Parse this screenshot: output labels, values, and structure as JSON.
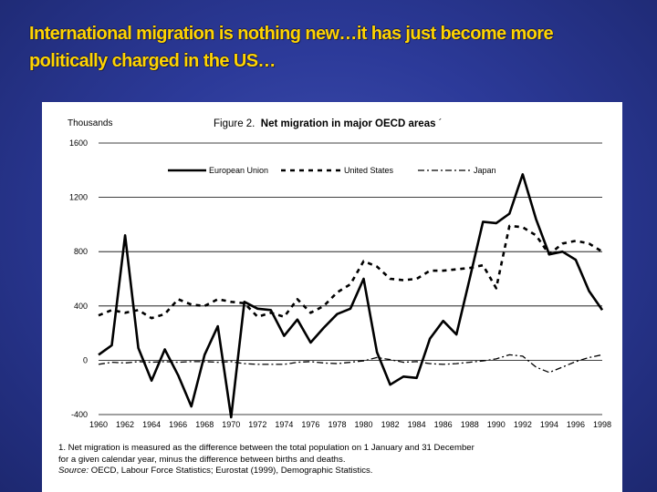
{
  "slide": {
    "title": "International migration is nothing new…it has just become more politically charged in the US…"
  },
  "figure": {
    "title_prefix": "Figure 2.",
    "title_main": "Net migration in major OECD areas",
    "title_mark": "´",
    "unit_label": "Thousands",
    "footnote_line1": "1.  Net migration is measured as the difference between the total population on 1 January and 31 December",
    "footnote_line2": "for a given calendar year, minus the difference between births and deaths.",
    "source_label": "Source:",
    "source_text": "OECD, Labour Force Statistics; Eurostat (1999), Demographic Statistics."
  },
  "chart_data": {
    "type": "line",
    "title": "Net migration in major OECD areas",
    "ylabel": "Thousands",
    "xlabel": "",
    "ylim": [
      -400,
      1600
    ],
    "yticks": [
      -400,
      0,
      400,
      800,
      1200,
      1600
    ],
    "xticks": [
      1960,
      1962,
      1964,
      1966,
      1968,
      1970,
      1972,
      1974,
      1976,
      1978,
      1980,
      1982,
      1984,
      1986,
      1988,
      1990,
      1992,
      1994,
      1996,
      1998
    ],
    "grid": "horizontal",
    "legend_position": "top",
    "x": [
      1960,
      1961,
      1962,
      1963,
      1964,
      1965,
      1966,
      1967,
      1968,
      1969,
      1970,
      1971,
      1972,
      1973,
      1974,
      1975,
      1976,
      1977,
      1978,
      1979,
      1980,
      1981,
      1982,
      1983,
      1984,
      1985,
      1986,
      1987,
      1988,
      1989,
      1990,
      1991,
      1992,
      1993,
      1994,
      1995,
      1996,
      1997,
      1998
    ],
    "series": [
      {
        "name": "European Union",
        "style": "solid",
        "values": [
          40,
          110,
          920,
          90,
          -150,
          80,
          -110,
          -340,
          40,
          250,
          -420,
          430,
          380,
          370,
          180,
          300,
          130,
          240,
          340,
          380,
          600,
          60,
          -180,
          -120,
          -130,
          160,
          290,
          190,
          600,
          1020,
          1010,
          1080,
          1370,
          1040,
          780,
          800,
          740,
          510,
          370
        ]
      },
      {
        "name": "United States",
        "style": "dashed",
        "values": [
          330,
          370,
          350,
          370,
          310,
          340,
          450,
          410,
          400,
          450,
          430,
          420,
          320,
          350,
          320,
          450,
          350,
          400,
          500,
          560,
          730,
          690,
          600,
          590,
          600,
          660,
          660,
          670,
          680,
          700,
          530,
          990,
          980,
          920,
          780,
          860,
          880,
          860,
          800
        ]
      },
      {
        "name": "Japan",
        "style": "dashdot",
        "values": [
          -30,
          -15,
          -20,
          -10,
          -15,
          -10,
          -15,
          -10,
          -10,
          -15,
          -10,
          -25,
          -30,
          -30,
          -30,
          -15,
          -10,
          -20,
          -25,
          -15,
          -5,
          20,
          5,
          -15,
          -10,
          -25,
          -30,
          -25,
          -15,
          -5,
          10,
          40,
          30,
          -50,
          -90,
          -50,
          -10,
          20,
          40
        ]
      }
    ]
  }
}
